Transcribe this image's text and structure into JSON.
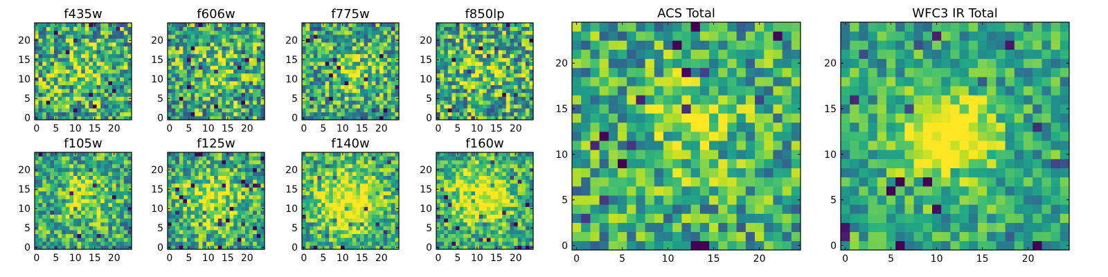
{
  "chart_data": [
    {
      "type": "heatmap",
      "title": "f435w",
      "x": {
        "range": [
          0,
          25
        ],
        "ticks": [
          0,
          5,
          10,
          15,
          20
        ]
      },
      "y": {
        "range": [
          0,
          25
        ],
        "ticks": [
          0,
          5,
          10,
          15,
          20
        ]
      },
      "grid": false,
      "colormap": "viridis",
      "seed": 11,
      "structure": {
        "blob_center": [
          12,
          12
        ],
        "blob_sigma": 5.0,
        "blob_amplitude": 0.15,
        "noise": 0.55
      }
    },
    {
      "type": "heatmap",
      "title": "f606w",
      "x": {
        "range": [
          0,
          25
        ],
        "ticks": [
          0,
          5,
          10,
          15,
          20
        ]
      },
      "y": {
        "range": [
          0,
          25
        ],
        "ticks": [
          0,
          5,
          10,
          15,
          20
        ]
      },
      "grid": false,
      "colormap": "viridis",
      "seed": 23,
      "structure": {
        "blob_center": [
          12,
          12
        ],
        "blob_sigma": 5.0,
        "blob_amplitude": 0.15,
        "noise": 0.55
      }
    },
    {
      "type": "heatmap",
      "title": "f775w",
      "x": {
        "range": [
          0,
          25
        ],
        "ticks": [
          0,
          5,
          10,
          15,
          20
        ]
      },
      "y": {
        "range": [
          0,
          25
        ],
        "ticks": [
          0,
          5,
          10,
          15,
          20
        ]
      },
      "grid": false,
      "colormap": "viridis",
      "seed": 37,
      "structure": {
        "blob_center": [
          13,
          12
        ],
        "blob_sigma": 4.0,
        "blob_amplitude": 0.25,
        "noise": 0.5
      }
    },
    {
      "type": "heatmap",
      "title": "f850lp",
      "x": {
        "range": [
          0,
          25
        ],
        "ticks": [
          0,
          5,
          10,
          15,
          20
        ]
      },
      "y": {
        "range": [
          0,
          25
        ],
        "ticks": [
          0,
          5,
          10,
          15,
          20
        ]
      },
      "grid": false,
      "colormap": "viridis",
      "seed": 41,
      "structure": {
        "blob_center": [
          12,
          12
        ],
        "blob_sigma": 5.0,
        "blob_amplitude": 0.15,
        "noise": 0.55
      }
    },
    {
      "type": "heatmap",
      "title": "f105w",
      "x": {
        "range": [
          0,
          25
        ],
        "ticks": [
          0,
          5,
          10,
          15,
          20
        ]
      },
      "y": {
        "range": [
          0,
          25
        ],
        "ticks": [
          0,
          5,
          10,
          15,
          20
        ]
      },
      "grid": false,
      "colormap": "viridis",
      "seed": 53,
      "structure": {
        "blob_center": [
          13,
          13
        ],
        "blob_sigma": 4.5,
        "blob_amplitude": 0.3,
        "noise": 0.45
      }
    },
    {
      "type": "heatmap",
      "title": "f125w",
      "x": {
        "range": [
          0,
          25
        ],
        "ticks": [
          0,
          5,
          10,
          15,
          20
        ]
      },
      "y": {
        "range": [
          0,
          25
        ],
        "ticks": [
          0,
          5,
          10,
          15,
          20
        ]
      },
      "grid": false,
      "colormap": "viridis",
      "seed": 67,
      "structure": {
        "blob_center": [
          11,
          12
        ],
        "blob_sigma": 5.0,
        "blob_amplitude": 0.35,
        "noise": 0.45
      }
    },
    {
      "type": "heatmap",
      "title": "f140w",
      "x": {
        "range": [
          0,
          25
        ],
        "ticks": [
          0,
          5,
          10,
          15,
          20
        ]
      },
      "y": {
        "range": [
          0,
          25
        ],
        "ticks": [
          0,
          5,
          10,
          15,
          20
        ]
      },
      "grid": false,
      "colormap": "viridis",
      "seed": 79,
      "structure": {
        "blob_center": [
          11,
          12
        ],
        "blob_sigma": 6.0,
        "blob_amplitude": 0.45,
        "noise": 0.4
      }
    },
    {
      "type": "heatmap",
      "title": "f160w",
      "x": {
        "range": [
          0,
          25
        ],
        "ticks": [
          0,
          5,
          10,
          15,
          20
        ]
      },
      "y": {
        "range": [
          0,
          25
        ],
        "ticks": [
          0,
          5,
          10,
          15,
          20
        ]
      },
      "grid": false,
      "colormap": "viridis",
      "seed": 83,
      "structure": {
        "blob_center": [
          11,
          13
        ],
        "blob_sigma": 5.5,
        "blob_amplitude": 0.45,
        "noise": 0.4
      }
    },
    {
      "type": "heatmap",
      "title": "ACS Total",
      "x": {
        "range": [
          0,
          25
        ],
        "ticks": [
          0,
          5,
          10,
          15,
          20
        ]
      },
      "y": {
        "range": [
          0,
          25
        ],
        "ticks": [
          0,
          5,
          10,
          15,
          20
        ]
      },
      "grid": false,
      "colormap": "viridis",
      "seed": 97,
      "structure": {
        "blob_center": [
          13,
          13
        ],
        "blob_sigma": 4.0,
        "blob_amplitude": 0.25,
        "noise": 0.45
      }
    },
    {
      "type": "heatmap",
      "title": "WFC3 IR Total",
      "x": {
        "range": [
          0,
          25
        ],
        "ticks": [
          0,
          5,
          10,
          15,
          20
        ]
      },
      "y": {
        "range": [
          0,
          25
        ],
        "ticks": [
          0,
          5,
          10,
          15,
          20
        ]
      },
      "grid": false,
      "colormap": "viridis",
      "seed": 101,
      "structure": {
        "blob_center": [
          11,
          12
        ],
        "blob_sigma": 3.5,
        "blob_amplitude": 0.6,
        "noise": 0.35
      }
    }
  ]
}
